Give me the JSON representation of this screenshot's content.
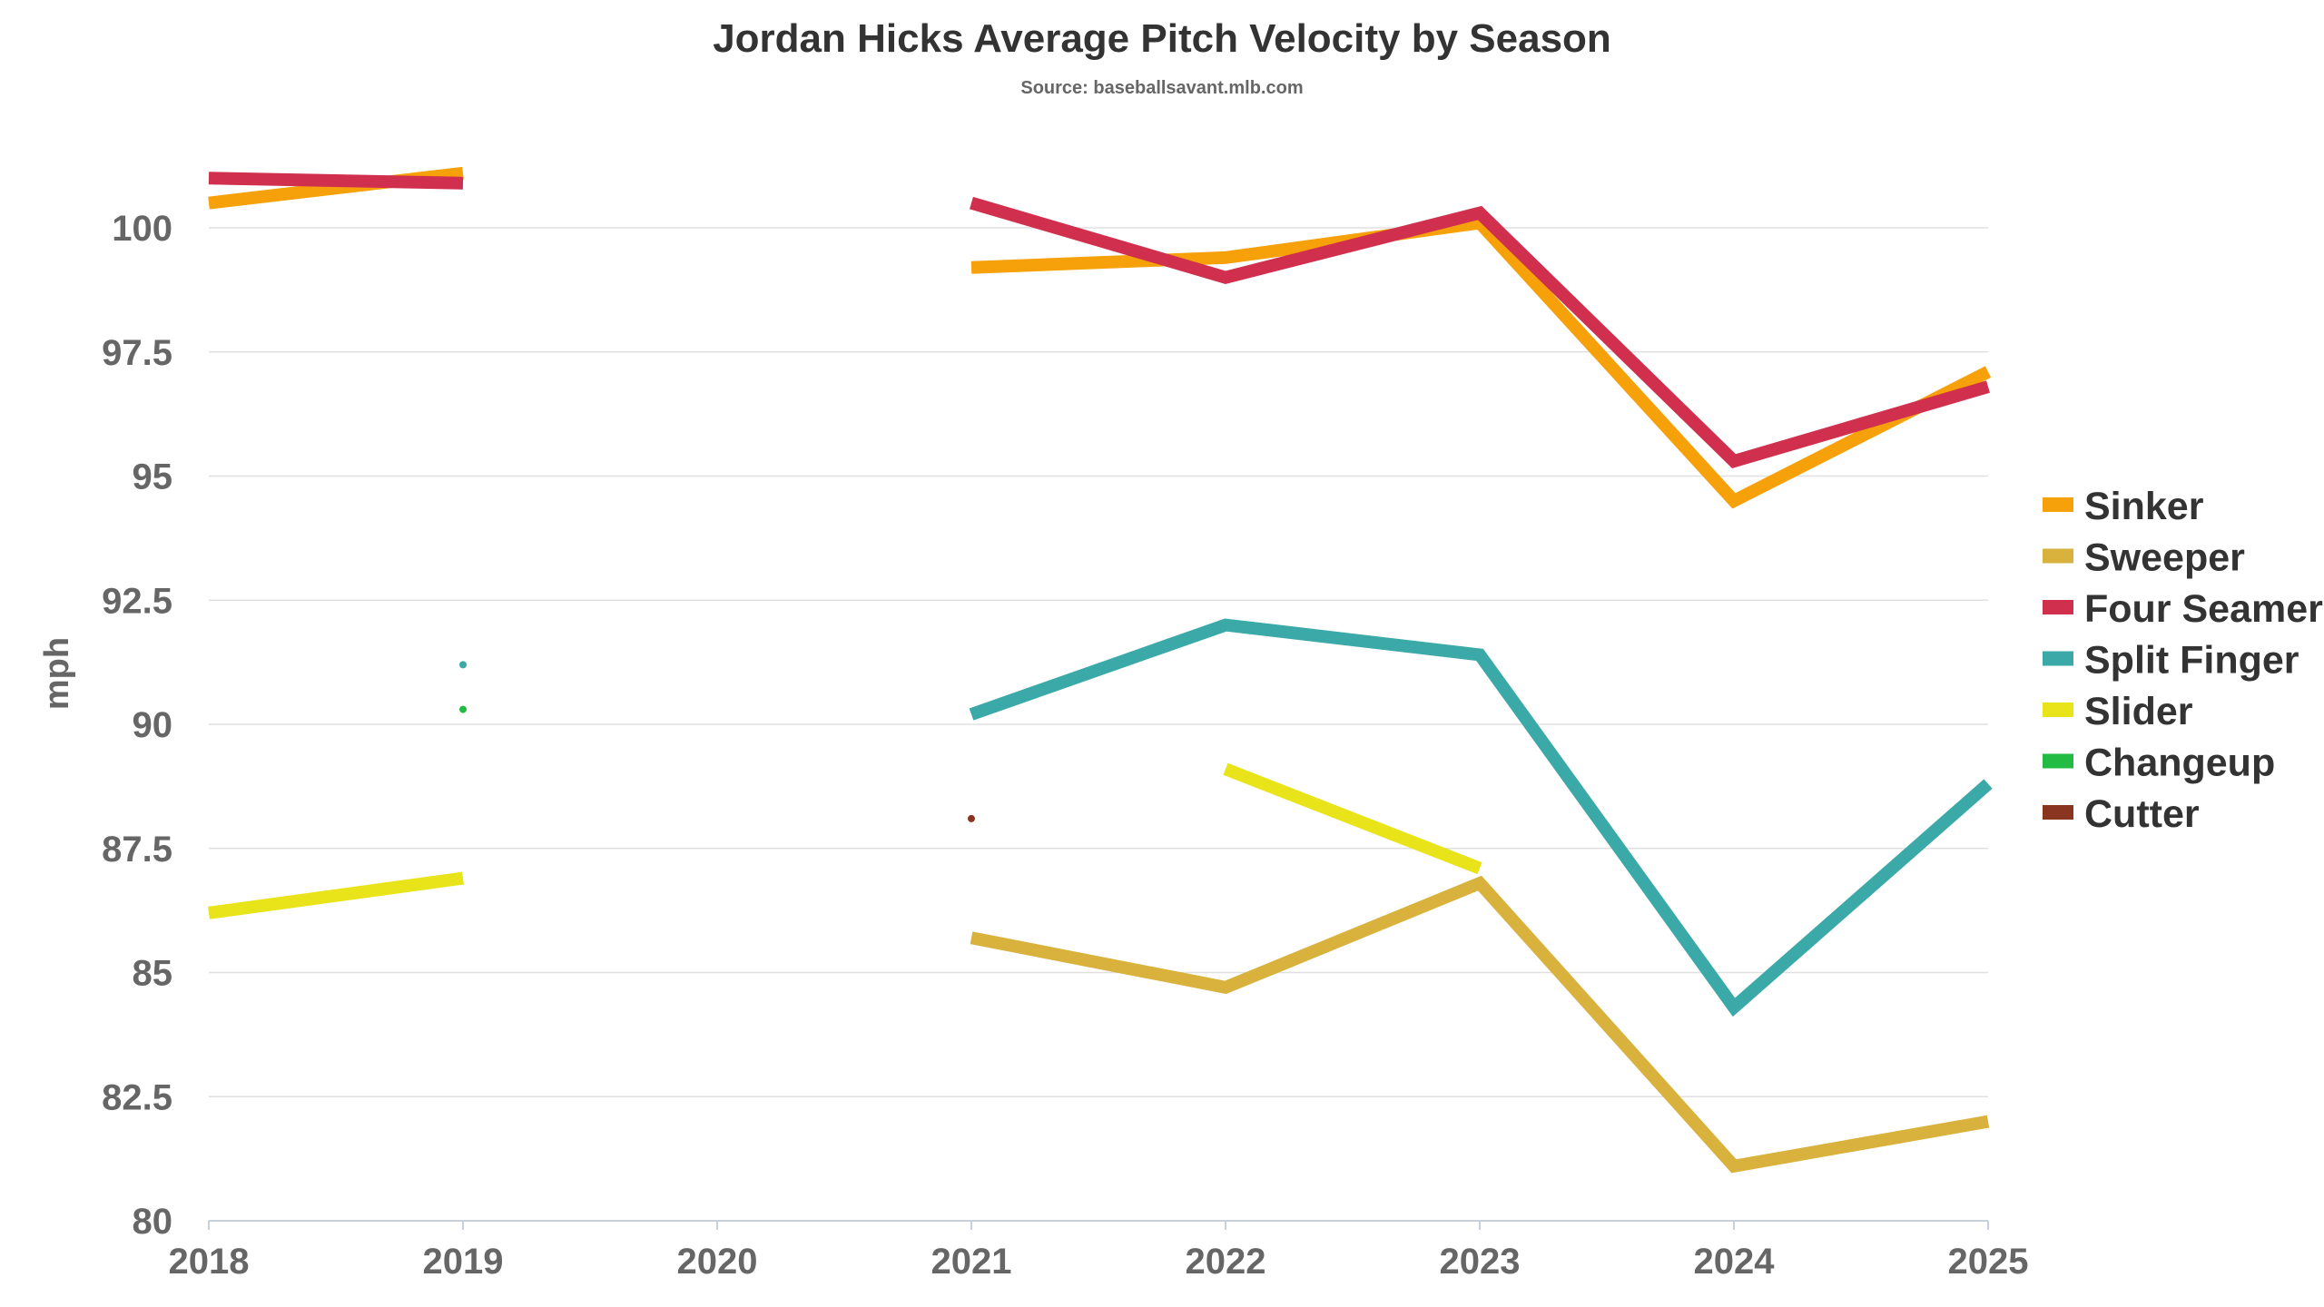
{
  "chart_data": {
    "type": "line",
    "title": "Jordan Hicks Average Pitch Velocity by Season",
    "subtitle": "Source: baseballsavant.mlb.com",
    "xlabel": "",
    "ylabel": "mph",
    "x": [
      2018,
      2019,
      2020,
      2021,
      2022,
      2023,
      2024,
      2025
    ],
    "xlim": [
      2018,
      2025
    ],
    "ylim": [
      80,
      102
    ],
    "yticks": [
      "80",
      "82.5",
      "85",
      "87.5",
      "90",
      "92.5",
      "95",
      "97.5",
      "100"
    ],
    "ytick_values": [
      80,
      82.5,
      85,
      87.5,
      90,
      92.5,
      95,
      97.5,
      100
    ],
    "grid": true,
    "legend": "right",
    "series": [
      {
        "name": "Sinker",
        "color": "#F7A10A",
        "values": [
          100.5,
          101.1,
          null,
          99.2,
          99.4,
          100.1,
          94.5,
          97.1
        ]
      },
      {
        "name": "Sweeper",
        "color": "#D9B23D",
        "values": [
          null,
          null,
          null,
          85.7,
          84.7,
          86.8,
          81.1,
          82.0
        ]
      },
      {
        "name": "Four Seamer",
        "color": "#D0304E",
        "values": [
          101.0,
          100.9,
          null,
          100.5,
          99.0,
          100.3,
          95.3,
          96.8
        ]
      },
      {
        "name": "Split Finger",
        "color": "#3AA9A7",
        "values": [
          null,
          91.2,
          null,
          90.2,
          92.0,
          91.4,
          84.3,
          88.8
        ]
      },
      {
        "name": "Slider",
        "color": "#E8E419",
        "values": [
          86.2,
          86.9,
          null,
          null,
          89.1,
          87.1,
          null,
          null
        ]
      },
      {
        "name": "Changeup",
        "color": "#22BB44",
        "values": [
          null,
          90.3,
          null,
          null,
          null,
          null,
          null,
          null
        ]
      },
      {
        "name": "Cutter",
        "color": "#8A3520",
        "values": [
          null,
          null,
          null,
          88.1,
          null,
          null,
          null,
          null
        ]
      }
    ]
  }
}
